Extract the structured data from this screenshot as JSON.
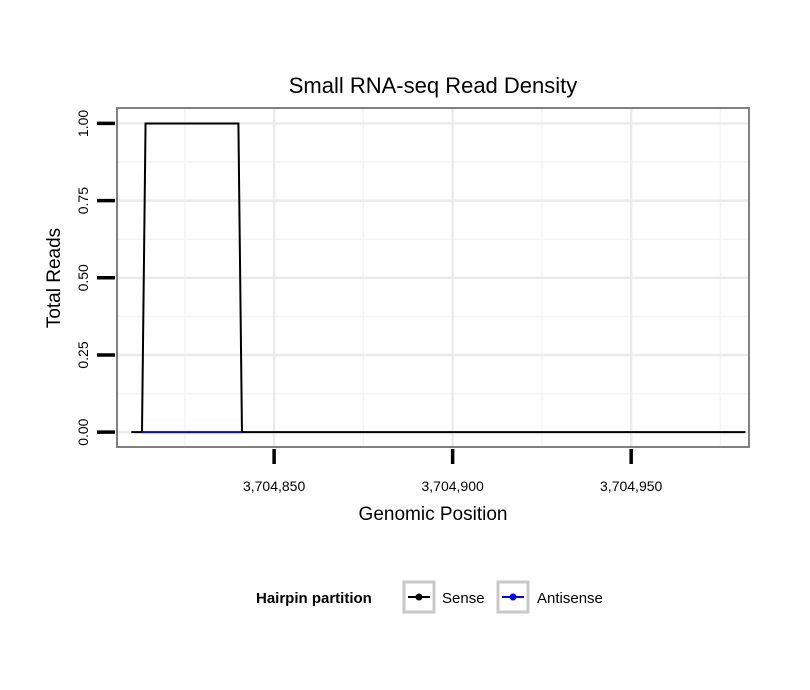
{
  "chart_data": {
    "type": "line",
    "title": "Small RNA-seq Read Density",
    "xlabel": "Genomic Position",
    "ylabel": "Total Reads",
    "xlim": [
      3704806,
      3704983
    ],
    "ylim": [
      -0.048,
      1.05
    ],
    "x_ticks": [
      3704850,
      3704900,
      3704950
    ],
    "x_tick_labels": [
      "3,704,850",
      "3,704,900",
      "3,704,950"
    ],
    "y_ticks": [
      0,
      0.25,
      0.5,
      0.75,
      1.0
    ],
    "y_tick_labels": [
      "0.00",
      "0.25",
      "0.50",
      "0.75",
      "1.00"
    ],
    "grid": true,
    "legend": {
      "title": "Hairpin partition",
      "position": "bottom"
    },
    "series": [
      {
        "name": "Sense",
        "color": "#000000",
        "x": [
          3704810,
          3704813,
          3704814,
          3704840,
          3704841,
          3704982
        ],
        "y": [
          0,
          0,
          1,
          1,
          0,
          0
        ]
      },
      {
        "name": "Antisense",
        "color": "#0000ff",
        "x": [
          3704813,
          3704841
        ],
        "y": [
          0,
          0
        ]
      }
    ]
  }
}
